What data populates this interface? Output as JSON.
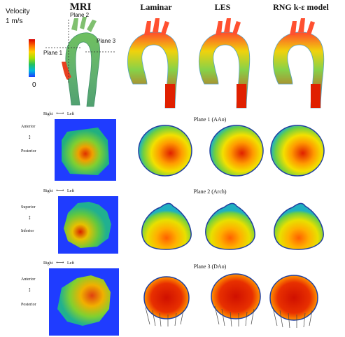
{
  "columns": {
    "mri": "MRI",
    "laminar": "Laminar",
    "les": "LES",
    "rng": "RNG k-ε model"
  },
  "legend": {
    "title": "Velocity",
    "max": "1 m/s",
    "min": "0"
  },
  "aorta_planes": {
    "plane1": "Plane 1",
    "plane2": "Plane 2",
    "plane3": "Plane 3"
  },
  "rows": [
    {
      "title": "Plane 1 (AAo)",
      "horiz_left": "Right",
      "horiz_right": "Left",
      "vert_top": "Anterior",
      "vert_bottom": "Posterior"
    },
    {
      "title": "Plane 2 (Arch)",
      "horiz_left": "Right",
      "horiz_right": "Left",
      "vert_top": "Superior",
      "vert_bottom": "Inferior"
    },
    {
      "title": "Plane 3 (DAo)",
      "horiz_left": "Right",
      "horiz_right": "Left",
      "vert_top": "Anterior",
      "vert_bottom": "Posterior"
    }
  ],
  "colors": {
    "mri_background": "#1f3cff",
    "velocity_high": "#d80000",
    "velocity_mid": "#ffd000",
    "velocity_low": "#1a3cff"
  }
}
